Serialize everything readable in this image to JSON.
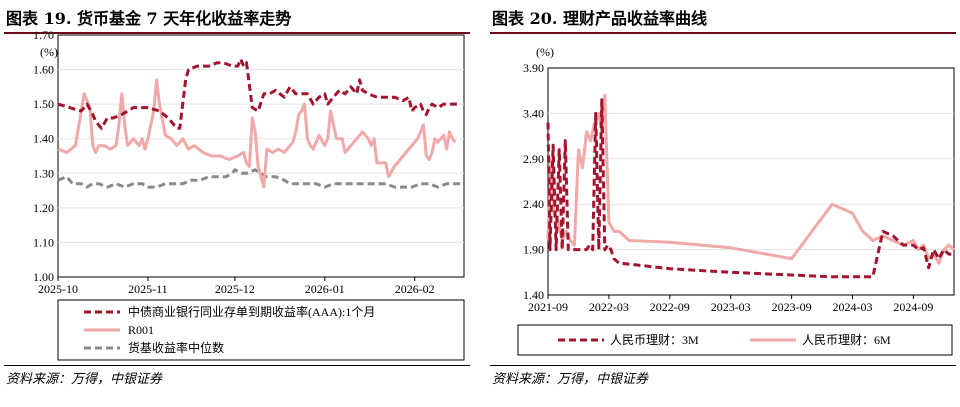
{
  "colors": {
    "dark_red": "#a3142e",
    "pink": "#f1a8a8",
    "gray": "#8a8a8a",
    "title_rule": "#6e0a1e"
  },
  "left": {
    "title": "图表 19. 货币基金 7 天年化收益率走势",
    "source": "资料来源：万得，中银证券",
    "chart_data": {
      "type": "line",
      "unit": "(%)",
      "ylim": [
        1.0,
        1.7
      ],
      "yticks": [
        1.7,
        1.6,
        1.5,
        1.4,
        1.3,
        1.2,
        1.1,
        1.0
      ],
      "ytick_labels": [
        "1.70",
        "1.60",
        "1.50",
        "1.40",
        "1.30",
        "1.20",
        "1.10",
        "1.00"
      ],
      "xlim": [
        0,
        140
      ],
      "xticks": [
        0,
        31,
        61,
        92,
        123
      ],
      "xtick_labels": [
        "2025-10",
        "2025-11",
        "2025-12",
        "2026-01",
        "2026-02"
      ],
      "series": [
        {
          "name": "中债商业银行同业存单到期收益率(AAA):1个月",
          "style": "dashed-thick",
          "color": "#a3142e",
          "x": [
            0,
            4,
            8,
            10,
            12,
            13,
            15,
            17,
            19,
            22,
            26,
            29,
            31,
            35,
            38,
            40,
            41,
            42,
            43,
            44,
            45,
            48,
            52,
            55,
            57,
            60,
            62,
            63,
            64,
            65,
            67,
            69,
            71,
            73,
            75,
            78,
            80,
            82,
            84,
            86,
            88,
            90,
            92,
            93,
            95,
            97,
            99,
            101,
            103,
            104,
            105,
            107,
            110,
            113,
            116,
            119,
            121,
            122,
            123,
            125,
            126,
            127,
            128,
            129,
            131,
            133,
            135,
            137,
            139
          ],
          "values": [
            1.5,
            1.49,
            1.48,
            1.5,
            1.47,
            1.45,
            1.43,
            1.46,
            1.46,
            1.47,
            1.49,
            1.49,
            1.49,
            1.48,
            1.46,
            1.44,
            1.43,
            1.43,
            1.5,
            1.57,
            1.6,
            1.61,
            1.61,
            1.62,
            1.62,
            1.61,
            1.61,
            1.63,
            1.61,
            1.62,
            1.49,
            1.48,
            1.53,
            1.53,
            1.54,
            1.52,
            1.55,
            1.53,
            1.53,
            1.53,
            1.5,
            1.52,
            1.53,
            1.5,
            1.52,
            1.54,
            1.53,
            1.55,
            1.53,
            1.57,
            1.54,
            1.53,
            1.52,
            1.52,
            1.52,
            1.51,
            1.52,
            1.48,
            1.49,
            1.5,
            1.48,
            1.47,
            1.49,
            1.5,
            1.49,
            1.5,
            1.5,
            1.5,
            1.5
          ]
        },
        {
          "name": "R001",
          "style": "solid-thick",
          "color": "#f1a8a8",
          "x": [
            0,
            3,
            6,
            8,
            9,
            10,
            11,
            12,
            13,
            14,
            16,
            18,
            20,
            21,
            22,
            23,
            24,
            26,
            28,
            29,
            30,
            31,
            33,
            34,
            35,
            37,
            39,
            41,
            43,
            45,
            47,
            50,
            53,
            56,
            59,
            62,
            64,
            65,
            66,
            67,
            68,
            69,
            70,
            71,
            72,
            74,
            76,
            78,
            79,
            80,
            81,
            82,
            83,
            84,
            85,
            86,
            87,
            88,
            90,
            92,
            93,
            94,
            96,
            98,
            99,
            100,
            101,
            103,
            105,
            107,
            108,
            109,
            110,
            111,
            112,
            113,
            114,
            116,
            118,
            120,
            122,
            124,
            125,
            126,
            127,
            128,
            129,
            130,
            131,
            132,
            133,
            134,
            135,
            136,
            137
          ],
          "values": [
            1.37,
            1.36,
            1.38,
            1.48,
            1.53,
            1.51,
            1.49,
            1.38,
            1.36,
            1.38,
            1.38,
            1.37,
            1.38,
            1.44,
            1.53,
            1.44,
            1.38,
            1.4,
            1.38,
            1.4,
            1.37,
            1.4,
            1.48,
            1.57,
            1.5,
            1.41,
            1.4,
            1.38,
            1.4,
            1.37,
            1.38,
            1.36,
            1.35,
            1.35,
            1.34,
            1.35,
            1.36,
            1.33,
            1.32,
            1.46,
            1.42,
            1.32,
            1.29,
            1.26,
            1.37,
            1.36,
            1.37,
            1.36,
            1.37,
            1.38,
            1.39,
            1.42,
            1.47,
            1.48,
            1.5,
            1.4,
            1.38,
            1.37,
            1.41,
            1.38,
            1.4,
            1.48,
            1.4,
            1.4,
            1.36,
            1.37,
            1.38,
            1.4,
            1.42,
            1.4,
            1.38,
            1.4,
            1.33,
            1.33,
            1.33,
            1.33,
            1.29,
            1.32,
            1.34,
            1.36,
            1.38,
            1.4,
            1.42,
            1.44,
            1.35,
            1.34,
            1.36,
            1.4,
            1.39,
            1.4,
            1.41,
            1.37,
            1.42,
            1.4,
            1.39
          ]
        },
        {
          "name": "货基收益率中位数",
          "style": "dashed-thick",
          "color": "#8a8a8a",
          "x": [
            0,
            3,
            5,
            8,
            10,
            12,
            14,
            17,
            20,
            23,
            26,
            29,
            31,
            34,
            37,
            40,
            43,
            46,
            49,
            52,
            55,
            58,
            60,
            61,
            63,
            65,
            68,
            70,
            72,
            75,
            78,
            80,
            83,
            86,
            89,
            92,
            95,
            98,
            101,
            104,
            107,
            110,
            113,
            116,
            119,
            122,
            125,
            128,
            131,
            134,
            137,
            139
          ],
          "values": [
            1.28,
            1.29,
            1.27,
            1.27,
            1.26,
            1.27,
            1.27,
            1.26,
            1.27,
            1.26,
            1.27,
            1.27,
            1.26,
            1.26,
            1.27,
            1.27,
            1.27,
            1.28,
            1.28,
            1.29,
            1.29,
            1.29,
            1.3,
            1.31,
            1.3,
            1.3,
            1.31,
            1.3,
            1.29,
            1.29,
            1.28,
            1.27,
            1.27,
            1.27,
            1.27,
            1.26,
            1.27,
            1.27,
            1.27,
            1.27,
            1.27,
            1.27,
            1.27,
            1.26,
            1.26,
            1.26,
            1.27,
            1.27,
            1.26,
            1.27,
            1.27,
            1.27
          ]
        }
      ]
    }
  },
  "right": {
    "title": "图表 20. 理财产品收益率曲线",
    "source": "资料来源：万得，中银证券",
    "chart_data": {
      "type": "line",
      "unit": "(%)",
      "ylim": [
        1.4,
        3.9
      ],
      "yticks": [
        3.9,
        3.4,
        2.9,
        2.4,
        1.9,
        1.4
      ],
      "ytick_labels": [
        "3.90",
        "3.40",
        "2.90",
        "2.40",
        "1.90",
        "1.40"
      ],
      "xlim": [
        0,
        40
      ],
      "xticks": [
        0,
        6,
        12,
        18,
        24,
        30,
        36
      ],
      "xtick_labels": [
        "2021-09",
        "2022-03",
        "2022-09",
        "2023-03",
        "2023-09",
        "2024-03",
        "2024-09"
      ],
      "series": [
        {
          "name": "人民币理财：3M",
          "style": "dashed-thick",
          "color": "#a3142e",
          "x": [
            0,
            0.2,
            0.5,
            0.8,
            1.1,
            1.4,
            1.7,
            2.0,
            2.3,
            2.6,
            2.9,
            3.2,
            3.5,
            3.8,
            4.1,
            4.4,
            4.7,
            5.0,
            5.3,
            5.6,
            5.9,
            6.2,
            6.5,
            7,
            8,
            12,
            18,
            24,
            28,
            31,
            31.5,
            32,
            33,
            34,
            35,
            36,
            36.5,
            37,
            37.5,
            38,
            38.5,
            39,
            39.5,
            40
          ],
          "values": [
            3.3,
            1.9,
            3.05,
            1.9,
            3.0,
            1.9,
            3.1,
            1.9,
            1.9,
            1.9,
            1.9,
            1.9,
            1.9,
            1.9,
            1.95,
            1.9,
            3.4,
            1.9,
            3.55,
            1.9,
            1.95,
            1.9,
            1.8,
            1.75,
            1.74,
            1.69,
            1.65,
            1.62,
            1.6,
            1.6,
            1.6,
            1.6,
            2.1,
            2.05,
            1.95,
            1.95,
            1.9,
            1.92,
            1.7,
            1.9,
            1.8,
            1.9,
            1.85,
            1.85
          ]
        },
        {
          "name": "人民币理财：6M",
          "style": "solid-thick",
          "color": "#f1a8a8",
          "x": [
            0,
            0.3,
            0.6,
            1.0,
            1.4,
            1.8,
            2.2,
            2.6,
            3.0,
            3.4,
            3.8,
            4.2,
            4.6,
            5.0,
            5.3,
            5.6,
            6.0,
            6.5,
            7,
            8,
            12,
            18,
            24,
            26,
            28,
            30,
            31,
            32,
            33,
            34,
            35,
            36,
            36.5,
            37,
            37.5,
            38,
            38.5,
            39,
            39.5,
            40
          ],
          "values": [
            2.0,
            2.9,
            2.3,
            2.2,
            2.0,
            2.1,
            2.0,
            1.95,
            3.0,
            2.8,
            3.2,
            3.1,
            3.3,
            3.4,
            3.2,
            3.6,
            2.2,
            2.1,
            2.1,
            2.0,
            1.98,
            1.92,
            1.8,
            2.1,
            2.4,
            2.3,
            2.1,
            2.0,
            2.05,
            2.0,
            1.95,
            2.0,
            1.9,
            1.95,
            1.8,
            1.85,
            1.75,
            1.9,
            1.95,
            1.9
          ]
        }
      ]
    }
  }
}
